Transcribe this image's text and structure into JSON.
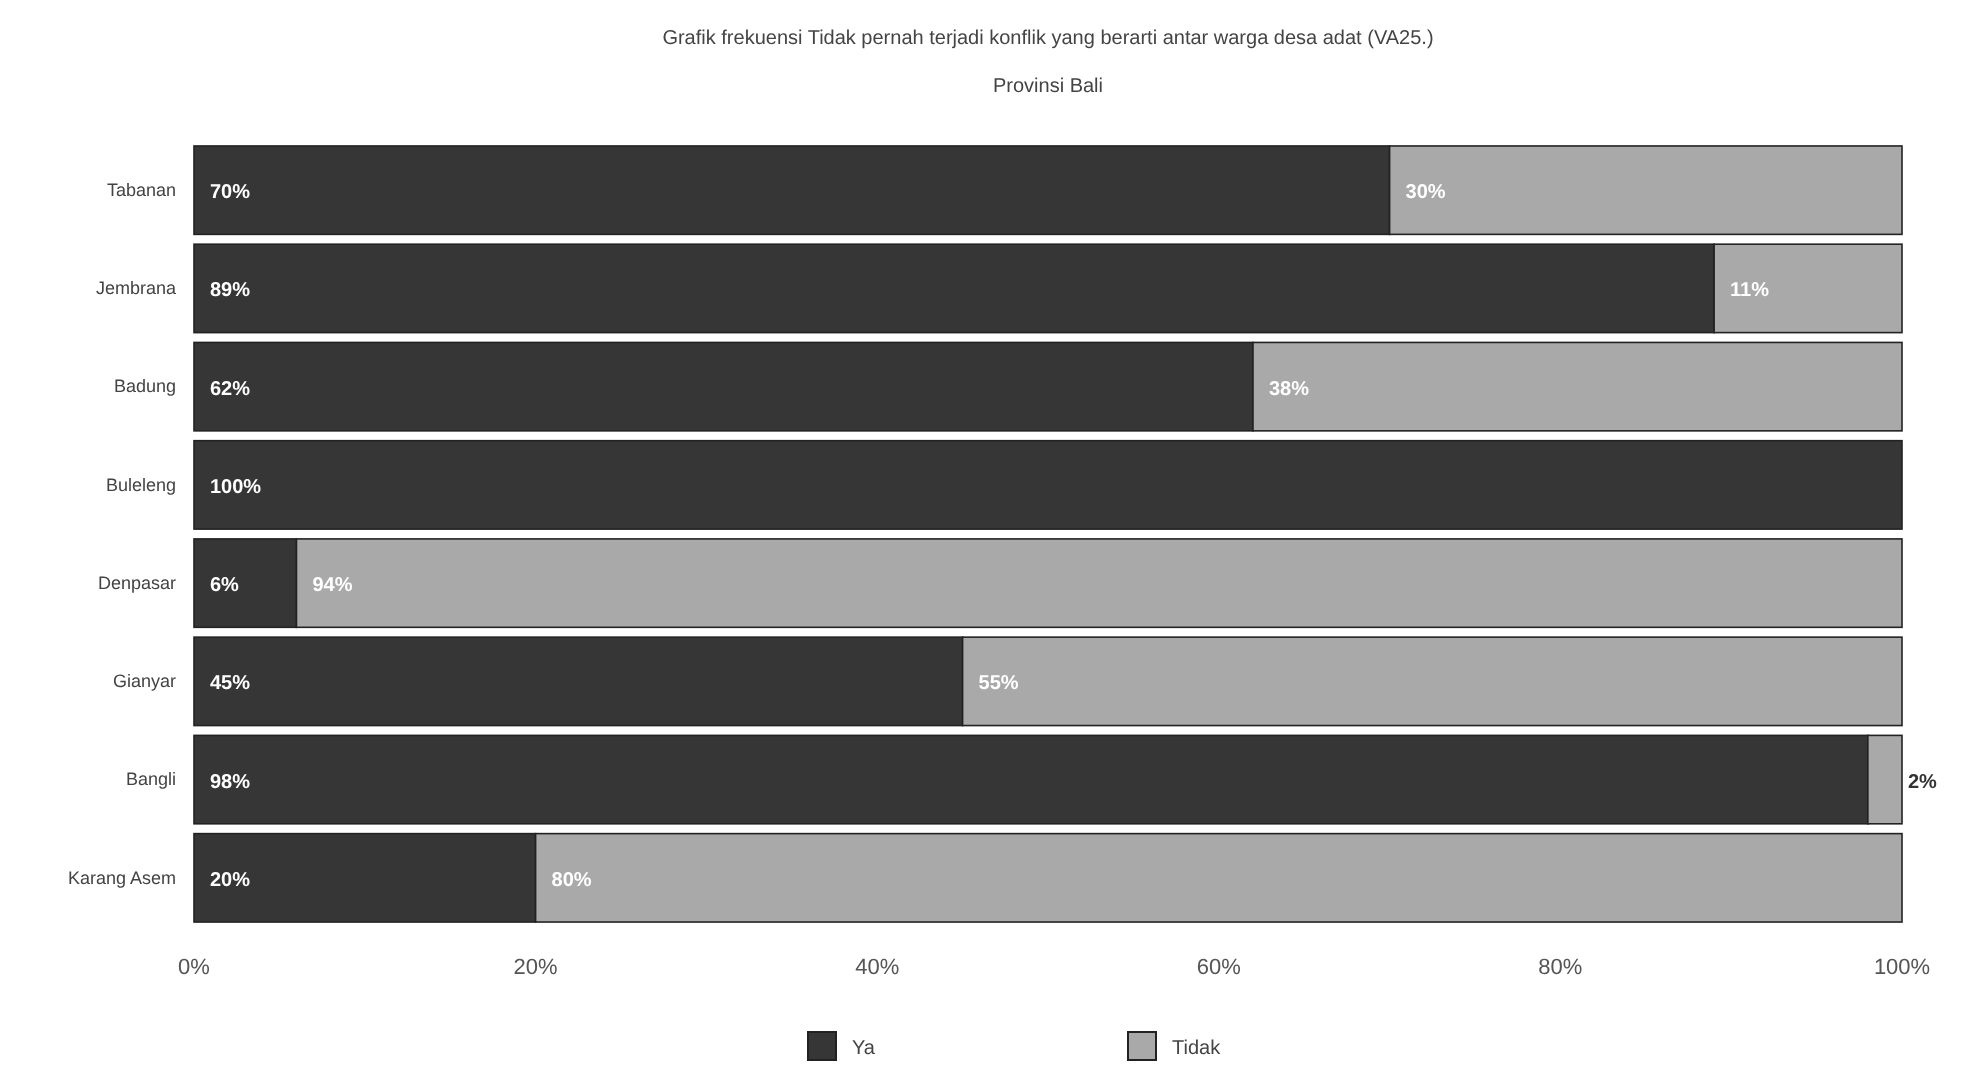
{
  "chart_data": {
    "type": "bar",
    "orientation": "horizontal",
    "stacked": true,
    "title": "Grafik frekuensi Tidak pernah terjadi konflik yang berarti antar warga desa adat (VA25.)",
    "subtitle": "Provinsi Bali",
    "categories": [
      "Tabanan",
      "Jembrana",
      "Badung",
      "Buleleng",
      "Denpasar",
      "Gianyar",
      "Bangli",
      "Karang Asem"
    ],
    "series": [
      {
        "name": "Ya",
        "color": "#363636",
        "values": [
          70,
          89,
          62,
          100,
          6,
          45,
          98,
          20
        ],
        "value_labels": [
          "70%",
          "89%",
          "62%",
          "100%",
          "6%",
          "45%",
          "98%",
          "20%"
        ]
      },
      {
        "name": "Tidak",
        "color": "#a9a9a9",
        "values": [
          30,
          11,
          38,
          0,
          94,
          55,
          2,
          80
        ],
        "value_labels": [
          "30%",
          "11%",
          "38%",
          null,
          "94%",
          "55%",
          "2%",
          "80%"
        ]
      }
    ],
    "xlim": [
      0,
      100
    ],
    "xticks": [
      {
        "value": 0,
        "label": "0%"
      },
      {
        "value": 20,
        "label": "20%"
      },
      {
        "value": 40,
        "label": "40%"
      },
      {
        "value": 60,
        "label": "60%"
      },
      {
        "value": 80,
        "label": "80%"
      },
      {
        "value": 100,
        "label": "100%"
      }
    ],
    "grid": false,
    "legend": "bottom"
  }
}
